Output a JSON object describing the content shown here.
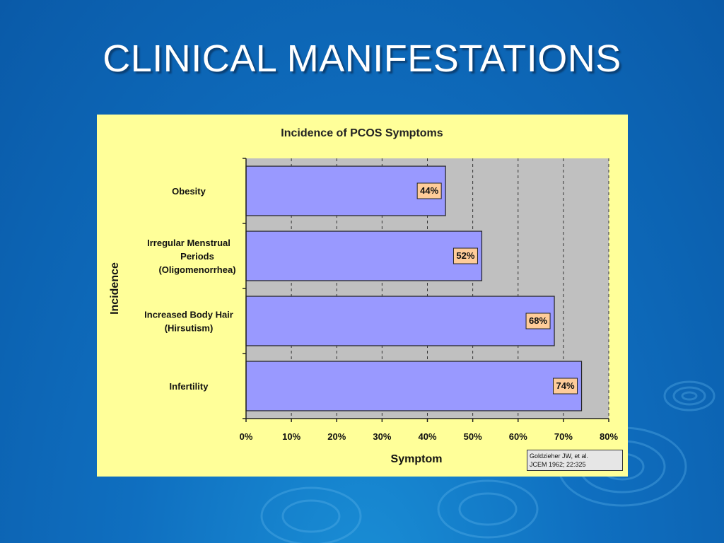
{
  "slide": {
    "title": "CLINICAL MANIFESTATIONS"
  },
  "colors": {
    "background": "#0f6fc0",
    "panel": "#ffff99",
    "plot_area": "#c0c0c0",
    "bar": "#9999ff",
    "data_label_box": "#ffcc99"
  },
  "chart_data": {
    "type": "bar",
    "orientation": "horizontal",
    "title": "Incidence of PCOS Symptoms",
    "xlabel": "Symptom",
    "ylabel": "Incidence",
    "categories": [
      [
        "Obesity"
      ],
      [
        "Irregular Menstrual",
        "Periods",
        "(Oligomenorrhea)"
      ],
      [
        "Increased Body Hair",
        "(Hirsutism)"
      ],
      [
        "Infertility"
      ]
    ],
    "values": [
      44,
      52,
      68,
      74
    ],
    "data_labels": [
      "44%",
      "52%",
      "68%",
      "74%"
    ],
    "xlim": [
      0,
      80
    ],
    "xticks": [
      "0%",
      "10%",
      "20%",
      "30%",
      "40%",
      "50%",
      "60%",
      "70%",
      "80%"
    ],
    "grid": "vertical dashed",
    "legend": "none"
  },
  "citation": {
    "line1": "Goldzieher JW, et al.",
    "line2": "JCEM 1962; 22:325"
  }
}
